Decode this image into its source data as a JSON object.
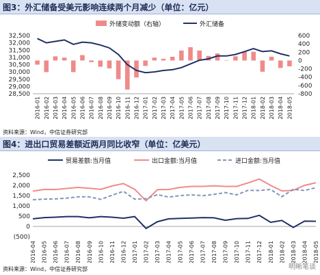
{
  "chart1": {
    "title": "图3：外汇储备受美元影响连续两个月减少（单位：亿元）",
    "source": "资料来源：Wind，中信证券研究部",
    "legend": [
      "外储变动额（右轴）",
      "外汇储备"
    ],
    "colors": {
      "bars": "#f08a8a",
      "line": "#1f2f66"
    },
    "left_ticks": [
      "32,500",
      "32,000",
      "31,500",
      "31,000",
      "30,500",
      "30,000",
      "29,500",
      "29,000",
      "28,500"
    ],
    "right_ticks": [
      "600",
      "400",
      "200",
      "0",
      "-200",
      "-400",
      "-600",
      "-800"
    ],
    "categories": [
      "2016-01",
      "2016-02",
      "2016-03",
      "2016-04",
      "2016-05",
      "2016-06",
      "2016-07",
      "2016-08",
      "2016-09",
      "2016-10",
      "2016-11",
      "2016-12",
      "2017-01",
      "2017-02",
      "2017-03",
      "2017-04",
      "2017-05",
      "2017-06",
      "2017-07",
      "2017-08",
      "2017-09",
      "2017-10",
      "2017-11",
      "2017-12",
      "2018-01",
      "2018-02",
      "2018-03",
      "2018-04",
      "2018-05"
    ],
    "chart_data": {
      "type": "bar+line",
      "ylim_left": [
        28500,
        32500
      ],
      "ylim_right": [
        -800,
        600
      ],
      "series": [
        {
          "name": "外储变动额（右轴）",
          "axis": "right",
          "type": "bar",
          "values": [
            -100,
            -280,
            100,
            70,
            -280,
            130,
            -40,
            -150,
            -190,
            -450,
            -700,
            -410,
            -130,
            70,
            40,
            90,
            240,
            320,
            240,
            110,
            170,
            10,
            100,
            210,
            210,
            -270,
            90,
            -180,
            -140
          ]
        },
        {
          "name": "外汇储备",
          "axis": "left",
          "type": "line",
          "values": [
            32300,
            32000,
            32100,
            32200,
            31900,
            32050,
            32000,
            31850,
            31650,
            31200,
            30500,
            30100,
            29950,
            30000,
            30100,
            30150,
            30300,
            30550,
            30800,
            30900,
            31100,
            31100,
            31200,
            31400,
            31600,
            31400,
            31450,
            31250,
            31100
          ]
        }
      ]
    }
  },
  "chart2": {
    "title": "图4：进出口贸易差额近两月同比收窄（单位：亿美元）",
    "source": "资料来源：Wind，中信证券研究部",
    "legend": [
      "贸易差额:当月值",
      "出口金额:当月值",
      "进口金额:当月值"
    ],
    "colors": {
      "trade": "#1f2f66",
      "export": "#f08a8a",
      "import": "#8095bb"
    },
    "left_ticks": [
      "2,500",
      "2,000",
      "1,500",
      "1,000",
      "500",
      "0",
      "(500)"
    ],
    "categories": [
      "2016-04",
      "2016-05",
      "2016-06",
      "2016-07",
      "2016-08",
      "2016-09",
      "2016-10",
      "2016-11",
      "2016-12",
      "2017-01",
      "2017-02",
      "2017-03",
      "2017-04",
      "2017-05",
      "2017-06",
      "2017-07",
      "2017-08",
      "2017-09",
      "2017-10",
      "2017-11",
      "2017-12",
      "2018-01",
      "2018-02",
      "2018-03",
      "2018-04",
      "2018-05"
    ],
    "chart_data": {
      "type": "line",
      "ylim": [
        -500,
        2500
      ],
      "series": [
        {
          "name": "贸易差额:当月值",
          "values": [
            370,
            430,
            450,
            480,
            480,
            420,
            480,
            450,
            400,
            480,
            -100,
            230,
            370,
            390,
            410,
            430,
            420,
            300,
            380,
            390,
            540,
            200,
            290,
            -50,
            260,
            250
          ]
        },
        {
          "name": "出口金额:当月值",
          "values": [
            1720,
            1800,
            1800,
            1850,
            1900,
            1860,
            1810,
            1970,
            2090,
            1810,
            1250,
            1790,
            1800,
            1900,
            1950,
            1950,
            1980,
            1950,
            1950,
            2120,
            2310,
            2000,
            1730,
            1760,
            2000,
            2130
          ]
        },
        {
          "name": "进口金额:当月值",
          "values": [
            1300,
            1330,
            1340,
            1380,
            1440,
            1440,
            1320,
            1520,
            1710,
            1330,
            1350,
            1550,
            1430,
            1500,
            1540,
            1500,
            1560,
            1650,
            1540,
            1760,
            1750,
            1800,
            1450,
            1810,
            1750,
            1890
          ]
        }
      ]
    }
  },
  "watermark": "明晰笔谈"
}
